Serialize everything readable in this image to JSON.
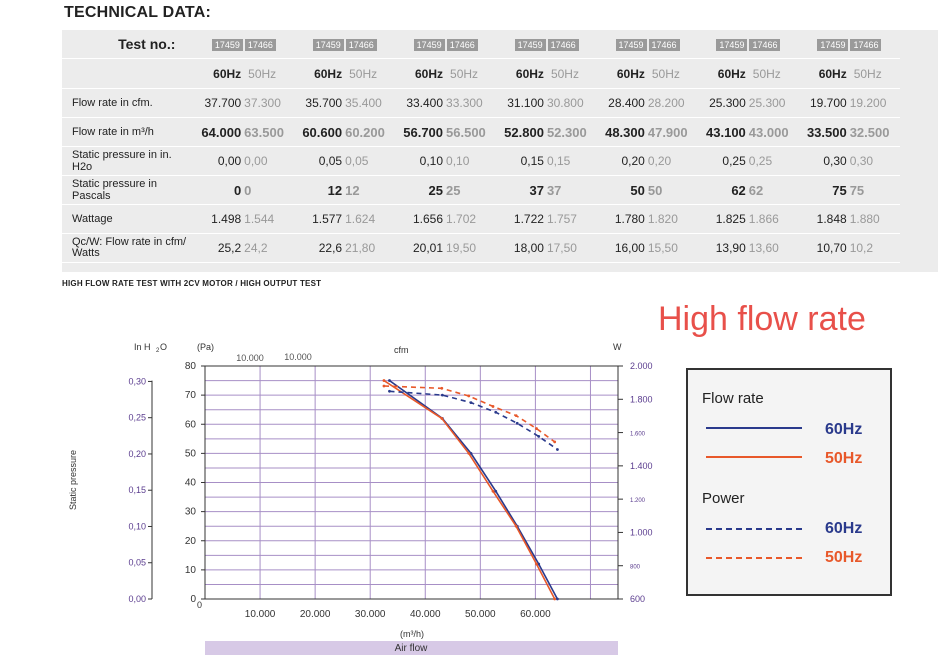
{
  "heading": "TECHNICAL DATA:",
  "table": {
    "test_label": "Test no.:",
    "tests": [
      [
        "17459",
        "17466"
      ],
      [
        "17459",
        "17466"
      ],
      [
        "17459",
        "17466"
      ],
      [
        "17459",
        "17466"
      ],
      [
        "17459",
        "17466"
      ],
      [
        "17459",
        "17466"
      ],
      [
        "17459",
        "17466"
      ]
    ],
    "hz_60": "60Hz",
    "hz_50": "50Hz",
    "rows": [
      {
        "label": "Flow rate in cfm.",
        "bold": false,
        "values": [
          [
            "37.700",
            "37.300"
          ],
          [
            "35.700",
            "35.400"
          ],
          [
            "33.400",
            "33.300"
          ],
          [
            "31.100",
            "30.800"
          ],
          [
            "28.400",
            "28.200"
          ],
          [
            "25.300",
            "25.300"
          ],
          [
            "19.700",
            "19.200"
          ]
        ]
      },
      {
        "label": "Flow rate in m³/h",
        "bold": true,
        "values": [
          [
            "64.000",
            "63.500"
          ],
          [
            "60.600",
            "60.200"
          ],
          [
            "56.700",
            "56.500"
          ],
          [
            "52.800",
            "52.300"
          ],
          [
            "48.300",
            "47.900"
          ],
          [
            "43.100",
            "43.000"
          ],
          [
            "33.500",
            "32.500"
          ]
        ]
      },
      {
        "label": "Static pressure in in. H2o",
        "bold": false,
        "values": [
          [
            "0,00",
            "0,00"
          ],
          [
            "0,05",
            "0,05"
          ],
          [
            "0,10",
            "0,10"
          ],
          [
            "0,15",
            "0,15"
          ],
          [
            "0,20",
            "0,20"
          ],
          [
            "0,25",
            "0,25"
          ],
          [
            "0,30",
            "0,30"
          ]
        ]
      },
      {
        "label": "Static pressure in Pascals",
        "bold": true,
        "values": [
          [
            "0",
            "0"
          ],
          [
            "12",
            "12"
          ],
          [
            "25",
            "25"
          ],
          [
            "37",
            "37"
          ],
          [
            "50",
            "50"
          ],
          [
            "62",
            "62"
          ],
          [
            "75",
            "75"
          ]
        ]
      },
      {
        "label": "Wattage",
        "bold": false,
        "values": [
          [
            "1.498",
            "1.544"
          ],
          [
            "1.577",
            "1.624"
          ],
          [
            "1.656",
            "1.702"
          ],
          [
            "1.722",
            "1.757"
          ],
          [
            "1.780",
            "1.820"
          ],
          [
            "1.825",
            "1.866"
          ],
          [
            "1.848",
            "1.880"
          ]
        ]
      },
      {
        "label": "Qc/W: Flow rate in cfm/ Watts",
        "bold": false,
        "values": [
          [
            "25,2",
            "24,2"
          ],
          [
            "22,6",
            "21,80"
          ],
          [
            "20,01",
            "19,50"
          ],
          [
            "18,00",
            "17,50"
          ],
          [
            "16,00",
            "15,50"
          ],
          [
            "13,90",
            "13,60"
          ],
          [
            "10,70",
            "10,2"
          ]
        ]
      }
    ]
  },
  "subtitle": "HIGH FLOW RATE TEST WITH 2CV MOTOR / HIGH OUTPUT TEST",
  "big_title": "High flow rate",
  "chart_data": {
    "type": "line",
    "ylabel": "Static pressure",
    "xlabel": "Air flow",
    "x_unit": "(m³/h)",
    "y_unit_left1": "In H₂O",
    "y_unit_left2": "(Pa)",
    "cfm_label": "cfm",
    "cfm_ticks": [
      "10.000",
      "10.000"
    ],
    "w_label": "W",
    "xlim": [
      0,
      75000
    ],
    "x_ticks": [
      "10.000",
      "20.000",
      "30.000",
      "40.000",
      "50.000",
      "60.000"
    ],
    "ylim_pa": [
      0,
      80
    ],
    "pa_ticks": [
      "0",
      "10",
      "20",
      "30",
      "40",
      "50",
      "60",
      "70",
      "80"
    ],
    "inh2o_ticks": [
      "0,00",
      "0,05",
      "0,10",
      "0,15",
      "0,20",
      "0,25",
      "0,30"
    ],
    "watt_ticks": [
      "600",
      "800",
      "1.000",
      "1.200",
      "1.400",
      "1.600",
      "1.800",
      "2.000"
    ],
    "ylim_w": [
      600,
      2000
    ],
    "series": [
      {
        "name": "60Hz",
        "kind": "Flow rate",
        "color": "#2a3a8c",
        "dash": false,
        "x": [
          33500,
          43100,
          48300,
          52800,
          56700,
          60600,
          64000
        ],
        "y": [
          75,
          62,
          50,
          37,
          25,
          12,
          0
        ]
      },
      {
        "name": "50Hz",
        "kind": "Flow rate",
        "color": "#e8582a",
        "dash": false,
        "x": [
          32500,
          43000,
          47900,
          52300,
          56500,
          60200,
          63500
        ],
        "y": [
          75,
          62,
          50,
          37,
          25,
          12,
          0
        ]
      },
      {
        "name": "60Hz",
        "kind": "Power",
        "color": "#2a3a8c",
        "dash": true,
        "x": [
          33500,
          43100,
          48300,
          52800,
          56700,
          60600,
          64000
        ],
        "y": [
          1848,
          1825,
          1780,
          1722,
          1656,
          1577,
          1498
        ]
      },
      {
        "name": "50Hz",
        "kind": "Power",
        "color": "#e8582a",
        "dash": true,
        "x": [
          32500,
          43000,
          47900,
          52300,
          56500,
          60200,
          63500
        ],
        "y": [
          1880,
          1866,
          1820,
          1757,
          1702,
          1624,
          1544
        ]
      }
    ]
  },
  "legend": {
    "flow_title": "Flow rate",
    "power_title": "Power",
    "label_60": "60Hz",
    "label_50": "50Hz",
    "color_60": "#2a3a8c",
    "color_50": "#e8582a"
  }
}
